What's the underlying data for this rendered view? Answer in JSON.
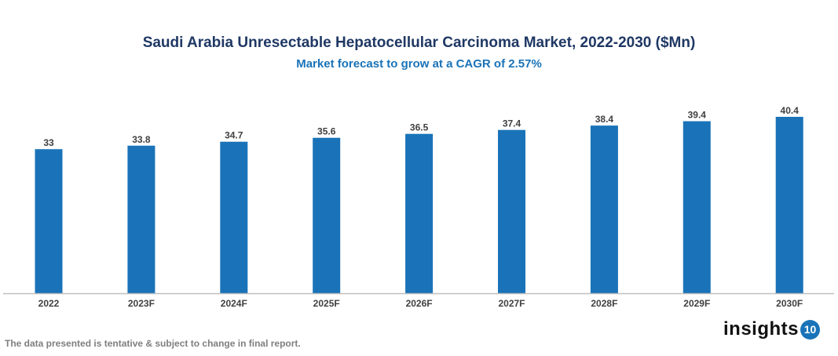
{
  "chart_data": {
    "type": "bar",
    "title": "Saudi Arabia Unresectable Hepatocellular Carcinoma Market, 2022-2030 ($Mn)",
    "subtitle": "Market forecast to grow at a CAGR of 2.57%",
    "categories": [
      "2022",
      "2023F",
      "2024F",
      "2025F",
      "2026F",
      "2027F",
      "2028F",
      "2029F",
      "2030F"
    ],
    "values": [
      33,
      33.8,
      34.7,
      35.6,
      36.5,
      37.4,
      38.4,
      39.4,
      40.4
    ],
    "xlabel": "",
    "ylabel": "",
    "ylim": [
      0,
      40.4
    ],
    "grid": false,
    "bar_color": "#1a73b8",
    "data_labels": true
  },
  "footnote": "The data presented is tentative & subject to change in final report.",
  "logo": {
    "text": "insights",
    "badge": "10"
  }
}
